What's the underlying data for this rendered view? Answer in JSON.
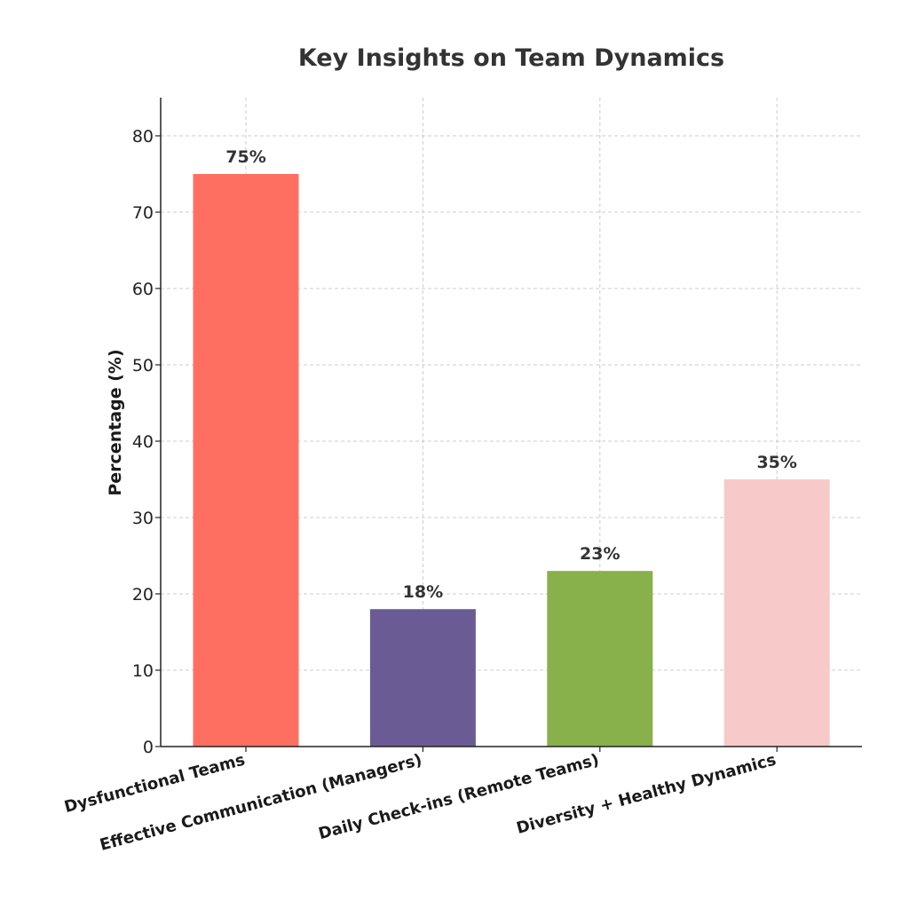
{
  "chart_data": {
    "type": "bar",
    "title": "Key Insights on Team Dynamics",
    "xlabel": "",
    "ylabel": "Percentage (%)",
    "categories": [
      "Dysfunctional Teams",
      "Effective Communication (Managers)",
      "Daily Check-ins (Remote Teams)",
      "Diversity + Healthy Dynamics"
    ],
    "values": [
      75,
      18,
      23,
      35
    ],
    "data_labels": [
      "75%",
      "18%",
      "23%",
      "35%"
    ],
    "colors": [
      "#ff6f61",
      "#6b5b95",
      "#88b04b",
      "#f7cac9"
    ],
    "ylim": [
      0,
      85
    ],
    "yticks": [
      0,
      10,
      20,
      30,
      40,
      50,
      60,
      70,
      80
    ],
    "grid": true,
    "legend": "none"
  }
}
